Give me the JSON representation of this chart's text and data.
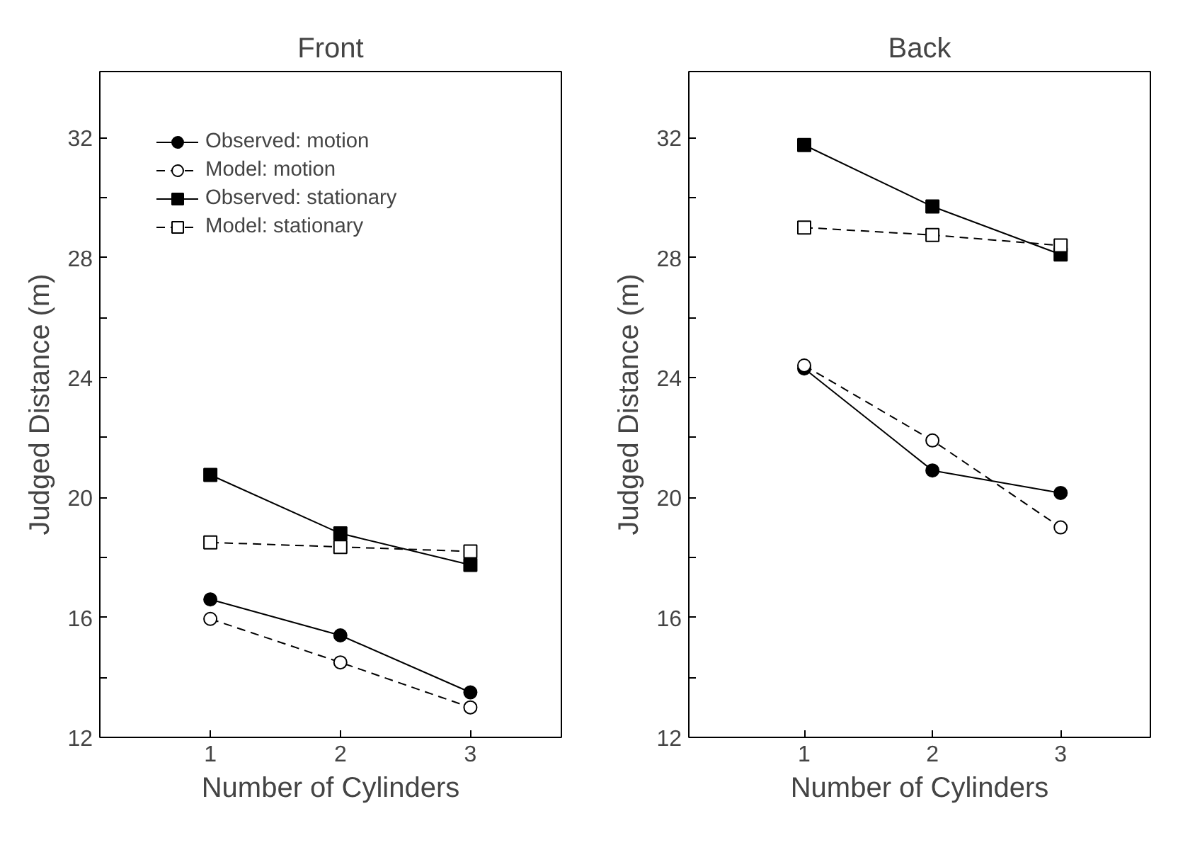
{
  "chart_data": [
    {
      "type": "line",
      "title": "Front",
      "xlabel": "Number of Cylinders",
      "ylabel": "Judged Distance (m)",
      "x": [
        1,
        2,
        3
      ],
      "xlim": [
        0.15,
        3.7
      ],
      "xticks": [
        1,
        2,
        3
      ],
      "ylim": [
        12,
        34.2
      ],
      "yticks": [
        12,
        {
          "value": 14,
          "label": null
        },
        16,
        {
          "value": 18,
          "label": null
        },
        20,
        {
          "value": 22,
          "label": null
        },
        24,
        {
          "value": 26,
          "label": null
        },
        28,
        {
          "value": 30,
          "label": null
        },
        32
      ],
      "grid": false,
      "legend": "top left",
      "series": [
        {
          "name": "Observed: motion",
          "color": "#000000",
          "marker": "circle",
          "line_style": "solid",
          "values": [
            16.6,
            15.4,
            13.5
          ]
        },
        {
          "name": "Model: motion",
          "color": "#000000",
          "marker": "circle",
          "line_style": "dashed",
          "values": [
            15.95,
            14.5,
            13.0
          ]
        },
        {
          "name": "Observed: stationary",
          "color": "#000000",
          "marker": "square",
          "line_style": "solid",
          "values": [
            20.75,
            18.8,
            17.75
          ]
        },
        {
          "name": "Model: stationary",
          "color": "#000000",
          "marker": "square",
          "line_style": "dashed",
          "values": [
            18.5,
            18.35,
            18.2
          ]
        }
      ]
    },
    {
      "type": "line",
      "title": "Back",
      "xlabel": "Number of Cylinders",
      "ylabel": "Judged Distance (m)",
      "x": [
        1,
        2,
        3
      ],
      "xlim": [
        0.1,
        3.7
      ],
      "xticks": [
        1,
        2,
        3
      ],
      "ylim": [
        12,
        34.2
      ],
      "yticks": [
        12,
        {
          "value": 14,
          "label": null
        },
        16,
        {
          "value": 18,
          "label": null
        },
        20,
        {
          "value": 22,
          "label": null
        },
        24,
        {
          "value": 26,
          "label": null
        },
        28,
        {
          "value": 30,
          "label": null
        },
        32
      ],
      "grid": false,
      "legend": false,
      "series": [
        {
          "color": "#000000",
          "marker": "circle",
          "line_style": "solid",
          "values": [
            24.3,
            20.9,
            20.15
          ]
        },
        {
          "color": "#000000",
          "marker": "circle",
          "line_style": "dashed",
          "values": [
            24.4,
            21.9,
            19.0
          ]
        },
        {
          "color": "#000000",
          "marker": "square",
          "line_style": "solid",
          "values": [
            31.75,
            29.7,
            28.1
          ]
        },
        {
          "color": "#000000",
          "marker": "square",
          "line_style": "dashed",
          "values": [
            29.0,
            28.75,
            28.4
          ]
        }
      ]
    }
  ]
}
